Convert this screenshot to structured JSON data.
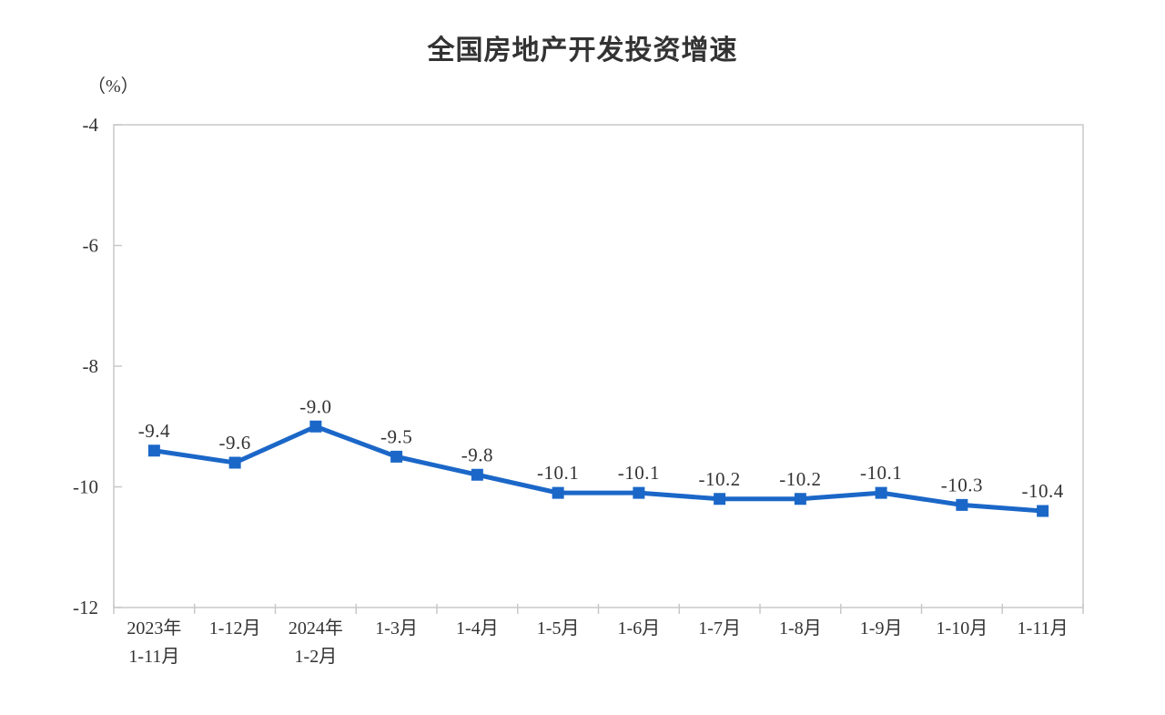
{
  "chart_data": {
    "type": "line",
    "title": "全国房地产开发投资增速",
    "unit_label": "（%）",
    "xlabel": "",
    "ylabel": "（%）",
    "categories": [
      "2023年\n1-11月",
      "1-12月",
      "2024年\n1-2月",
      "1-3月",
      "1-4月",
      "1-5月",
      "1-6月",
      "1-7月",
      "1-8月",
      "1-9月",
      "1-10月",
      "1-11月"
    ],
    "values": [
      -9.4,
      -9.6,
      -9.0,
      -9.5,
      -9.8,
      -10.1,
      -10.1,
      -10.2,
      -10.2,
      -10.1,
      -10.3,
      -10.4
    ],
    "data_labels": [
      "-9.4",
      "-9.6",
      "-9.0",
      "-9.5",
      "-9.8",
      "-10.1",
      "-10.1",
      "-10.2",
      "-10.2",
      "-10.1",
      "-10.3",
      "-10.4"
    ],
    "ylim": [
      -12,
      -4
    ],
    "yticks": [
      -4,
      -6,
      -8,
      -10,
      -12
    ],
    "ytick_labels": [
      "-4",
      "-6",
      "-8",
      "-10",
      "-12"
    ],
    "grid": false,
    "legend": "none",
    "marker": "square",
    "colors": {
      "series": "#1b67c8",
      "axis": "#c8c8c8",
      "text": "#333333",
      "background": "#ffffff"
    }
  }
}
